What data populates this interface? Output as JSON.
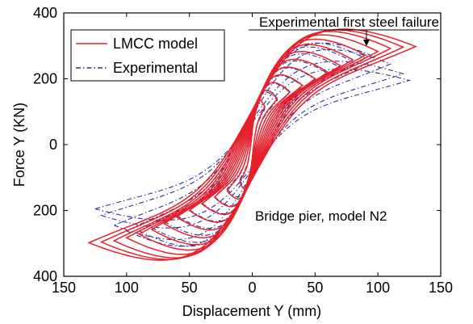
{
  "chart_data": {
    "type": "line",
    "title": "",
    "xlabel": "Displacement Y (mm)",
    "ylabel": "Force Y (KN)",
    "xlim": [
      -150,
      150
    ],
    "ylim": [
      -400,
      400
    ],
    "x_ticks": [
      -150,
      -100,
      -50,
      0,
      50,
      100,
      150
    ],
    "x_tick_labels": [
      "150",
      "100",
      "50",
      "0",
      "50",
      "100",
      "150"
    ],
    "y_ticks": [
      400,
      200,
      0,
      -200,
      -400
    ],
    "y_tick_labels": [
      "400",
      "200",
      "0",
      "200",
      "400"
    ],
    "grid": false,
    "legend_position": "top-left",
    "series": [
      {
        "name": "LMCC model",
        "color": "#e8202a",
        "style": "solid",
        "cycles": [
          {
            "amp": 10,
            "fpeak": 115
          },
          {
            "amp": 20,
            "fpeak": 140
          },
          {
            "amp": 30,
            "fpeak": 160
          },
          {
            "amp": 40,
            "fpeak": 180
          },
          {
            "amp": 50,
            "fpeak": 200
          },
          {
            "amp": 60,
            "fpeak": 220
          },
          {
            "amp": 70,
            "fpeak": 240
          },
          {
            "amp": 80,
            "fpeak": 258
          },
          {
            "amp": 90,
            "fpeak": 272
          },
          {
            "amp": 100,
            "fpeak": 283
          },
          {
            "amp": 110,
            "fpeak": 292
          },
          {
            "amp": 120,
            "fpeak": 296
          },
          {
            "amp": 130,
            "fpeak": 298
          }
        ]
      },
      {
        "name": "Experimental",
        "color": "#2c2f96",
        "style": "dashdot",
        "cycles": [
          {
            "amp": 10,
            "fpeak": 108
          },
          {
            "amp": 20,
            "fpeak": 135
          },
          {
            "amp": 30,
            "fpeak": 158
          },
          {
            "amp": 40,
            "fpeak": 178
          },
          {
            "amp": 50,
            "fpeak": 198
          },
          {
            "amp": 60,
            "fpeak": 216
          },
          {
            "amp": 70,
            "fpeak": 234
          },
          {
            "amp": 80,
            "fpeak": 252
          },
          {
            "amp": 90,
            "fpeak": 262
          },
          {
            "amp": 100,
            "fpeak": 262
          },
          {
            "amp": 110,
            "fpeak": 245
          },
          {
            "amp": 120,
            "fpeak": 215
          },
          {
            "amp": 125,
            "fpeak": 195
          }
        ]
      }
    ],
    "annotations": [
      {
        "text": "Experimental first steel failure",
        "x": 88,
        "y": 298
      },
      {
        "text": "Bridge pier, model N2",
        "x": 80,
        "y": -210
      }
    ]
  }
}
